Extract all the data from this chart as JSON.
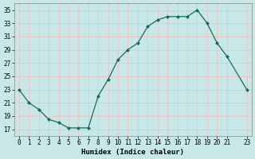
{
  "x": [
    0,
    1,
    2,
    3,
    4,
    5,
    6,
    7,
    8,
    9,
    10,
    11,
    12,
    13,
    14,
    15,
    16,
    17,
    18,
    19,
    20,
    21,
    23
  ],
  "y": [
    23,
    21,
    20,
    18.5,
    18,
    17.2,
    17.2,
    17.2,
    22,
    24.5,
    27.5,
    29,
    30,
    32.5,
    33.5,
    34,
    34,
    34,
    35,
    33,
    30,
    28,
    23
  ],
  "line_color": "#1a6b5a",
  "marker": "D",
  "marker_size": 2.0,
  "bg_color": "#c8e8e8",
  "grid_color": "#e8c8c8",
  "xlabel": "Humidex (Indice chaleur)",
  "xlim": [
    -0.5,
    23.5
  ],
  "ylim": [
    16,
    36
  ],
  "yticks": [
    17,
    19,
    21,
    23,
    25,
    27,
    29,
    31,
    33,
    35
  ],
  "xticks": [
    0,
    1,
    2,
    3,
    4,
    5,
    6,
    7,
    8,
    9,
    10,
    11,
    12,
    13,
    14,
    15,
    16,
    17,
    18,
    19,
    20,
    21,
    23
  ],
  "tick_label_fontsize": 5.5,
  "xlabel_fontsize": 6.5
}
